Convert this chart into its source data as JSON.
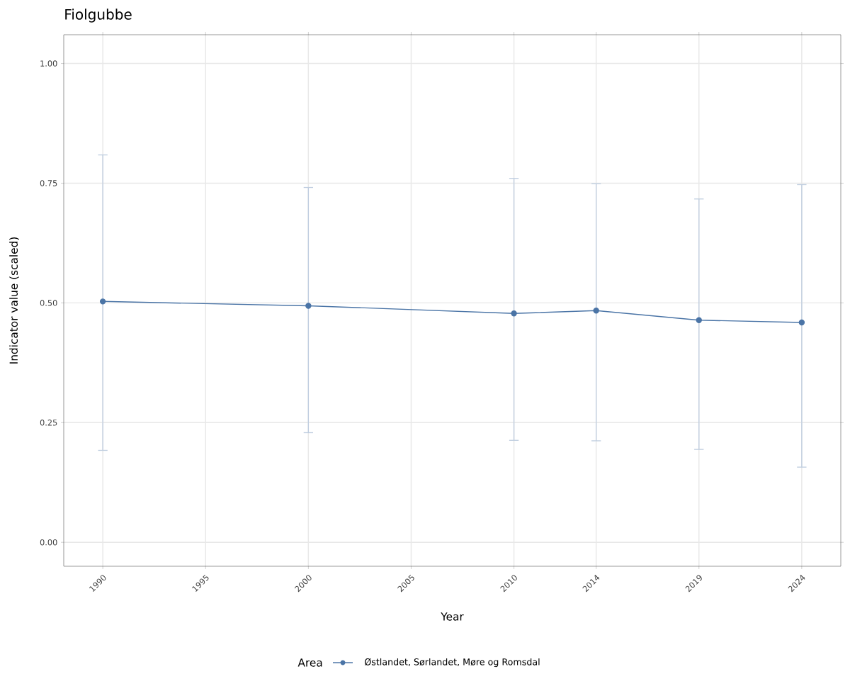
{
  "chart_data": {
    "type": "line",
    "title": "Fiolgubbe",
    "xlabel": "Year",
    "ylabel": "Indicator value (scaled)",
    "legend_title": "Area",
    "x": [
      1990,
      2000,
      2010,
      2014,
      2019,
      2024
    ],
    "series": [
      {
        "name": "Østlandet, Sørlandet, Møre og Romsdal",
        "color": "#4a74a6",
        "values": [
          0.503,
          0.494,
          0.478,
          0.484,
          0.464,
          0.459
        ],
        "errors": [
          [
            0.192,
            0.809
          ],
          [
            0.229,
            0.741
          ],
          [
            0.213,
            0.76
          ],
          [
            0.212,
            0.749
          ],
          [
            0.194,
            0.717
          ],
          [
            0.157,
            0.747
          ]
        ]
      }
    ],
    "xlim": [
      1988.1,
      2025.9
    ],
    "ylim": [
      -0.05,
      1.06
    ],
    "xticks": [
      1990,
      1995,
      2000,
      2005,
      2010,
      2014,
      2019,
      2024
    ],
    "yticks": [
      {
        "value": 0,
        "label": "0.00"
      },
      {
        "value": 0.25,
        "label": "0.25"
      },
      {
        "value": 0.5,
        "label": "0.50"
      },
      {
        "value": 0.75,
        "label": "0.75"
      },
      {
        "value": 1,
        "label": "1.00"
      }
    ],
    "grid": true,
    "legend": "bottom",
    "marker": "circle",
    "line_style": "solid"
  }
}
